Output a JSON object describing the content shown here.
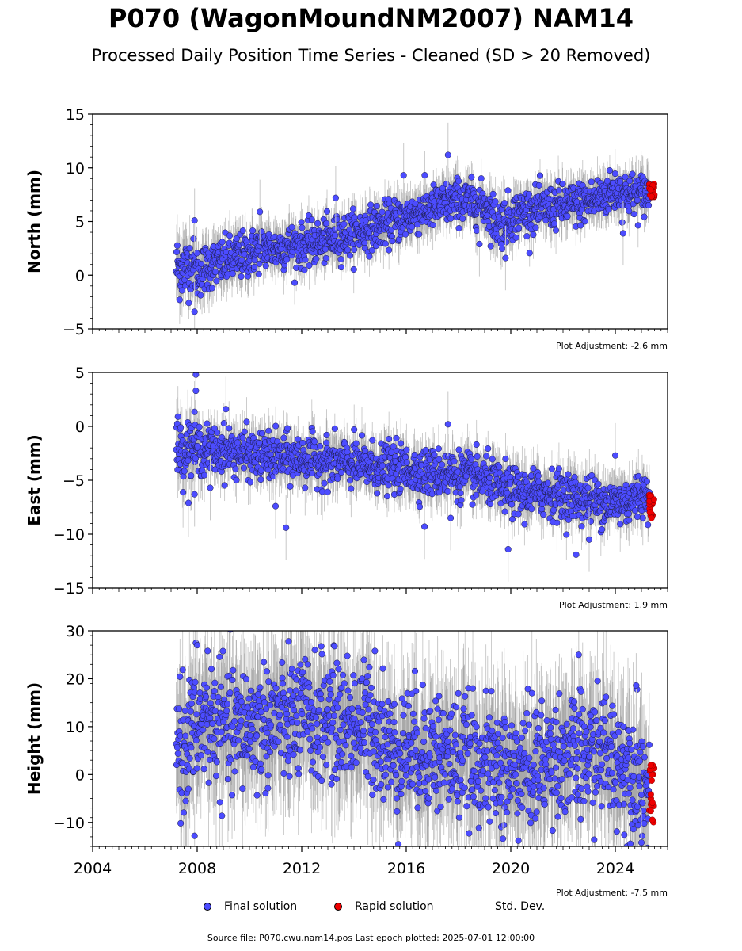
{
  "title": "P070 (WagonMoundNM2007) NAM14",
  "subtitle": "Processed Daily Position Time Series - Cleaned (SD > 20 Removed)",
  "legend": {
    "final": "Final solution",
    "rapid": "Rapid solution",
    "std": "Std. Dev."
  },
  "source_text": "Source file: P070.cwu.nam14.pos  Last epoch plotted: 2025-07-01 12:00:00",
  "colors": {
    "final": "#4c4cff",
    "rapid": "#ee0000",
    "std": "#cccccc"
  },
  "chart_data": [
    {
      "type": "scatter",
      "ylabel": "North (mm)",
      "xlim": [
        2004,
        2026
      ],
      "ylim": [
        -5,
        15
      ],
      "yticks": [
        -5,
        0,
        5,
        10,
        15
      ],
      "xticks": [
        2004,
        2008,
        2012,
        2016,
        2020,
        2024
      ],
      "adjustment": "Plot Adjustment: -2.6 mm",
      "final_series": {
        "x": [
          2007.2,
          2007.5,
          2007.8,
          2008.0,
          2008.5,
          2009.0,
          2009.5,
          2010.0,
          2010.5,
          2011.0,
          2011.5,
          2012.0,
          2012.5,
          2013.0,
          2013.5,
          2014.0,
          2014.5,
          2015.0,
          2015.5,
          2016.0,
          2016.5,
          2017.0,
          2017.5,
          2018.0,
          2018.5,
          2019.0,
          2019.5,
          2020.0,
          2020.5,
          2021.0,
          2021.5,
          2022.0,
          2022.5,
          2023.0,
          2023.5,
          2024.0,
          2024.5,
          2025.0,
          2025.3
        ],
        "y": [
          0.8,
          0.5,
          1.2,
          0.2,
          1.0,
          1.2,
          1.6,
          2.0,
          2.6,
          2.4,
          2.8,
          2.7,
          3.0,
          3.2,
          3.6,
          3.9,
          4.3,
          4.6,
          5.0,
          5.4,
          5.9,
          6.3,
          6.6,
          7.0,
          6.7,
          6.6,
          4.8,
          5.4,
          6.0,
          6.1,
          6.3,
          6.5,
          6.6,
          6.9,
          7.3,
          7.9,
          7.6,
          7.5,
          7.7
        ],
        "spread": [
          1.6,
          1.6,
          1.4,
          1.3,
          1.2,
          1.2,
          1.2,
          1.2,
          1.1,
          1.1,
          1.1,
          1.1,
          1.1,
          1.1,
          1.1,
          1.1,
          1.1,
          1.1,
          1.1,
          1.1,
          1.1,
          1.1,
          1.1,
          1.1,
          1.1,
          1.1,
          1.3,
          1.2,
          1.1,
          1.1,
          1.1,
          1.1,
          1.1,
          1.1,
          1.1,
          1.1,
          1.1,
          1.1,
          1.1
        ]
      },
      "outliers": [
        {
          "x": 2007.9,
          "y": -3.4
        },
        {
          "x": 2007.9,
          "y": 5.1
        },
        {
          "x": 2010.4,
          "y": 5.9
        },
        {
          "x": 2013.3,
          "y": 7.2
        },
        {
          "x": 2015.9,
          "y": 9.3
        },
        {
          "x": 2017.6,
          "y": 11.2
        },
        {
          "x": 2018.8,
          "y": 2.9
        },
        {
          "x": 2019.8,
          "y": 1.6
        },
        {
          "x": 2024.3,
          "y": 3.9
        }
      ],
      "rapid": {
        "x_start": 2025.3,
        "x_end": 2025.5,
        "y_min": 7.2,
        "y_max": 9.0
      }
    },
    {
      "type": "scatter",
      "ylabel": "East (mm)",
      "xlim": [
        2004,
        2026
      ],
      "ylim": [
        -15,
        5
      ],
      "yticks": [
        -15,
        -10,
        -5,
        0,
        5
      ],
      "xticks": [
        2004,
        2008,
        2012,
        2016,
        2020,
        2024
      ],
      "adjustment": "Plot Adjustment: 1.9 mm",
      "final_series": {
        "x": [
          2007.2,
          2007.5,
          2007.8,
          2008.0,
          2008.5,
          2009.0,
          2009.5,
          2010.0,
          2010.5,
          2011.0,
          2011.5,
          2012.0,
          2012.5,
          2013.0,
          2013.5,
          2014.0,
          2014.5,
          2015.0,
          2015.5,
          2016.0,
          2016.5,
          2017.0,
          2017.5,
          2018.0,
          2018.5,
          2019.0,
          2019.5,
          2020.0,
          2020.5,
          2021.0,
          2021.5,
          2022.0,
          2022.5,
          2023.0,
          2023.5,
          2024.0,
          2024.5,
          2025.0,
          2025.3
        ],
        "y": [
          -2.0,
          -2.3,
          -1.8,
          -2.1,
          -2.2,
          -2.3,
          -2.4,
          -2.6,
          -2.8,
          -2.9,
          -3.0,
          -3.0,
          -3.1,
          -3.3,
          -3.4,
          -3.5,
          -3.7,
          -3.8,
          -3.9,
          -4.0,
          -4.2,
          -4.3,
          -4.4,
          -4.5,
          -4.7,
          -4.9,
          -5.6,
          -6.0,
          -6.3,
          -6.1,
          -6.2,
          -6.4,
          -6.6,
          -6.8,
          -7.0,
          -7.1,
          -6.9,
          -6.3,
          -6.4
        ],
        "spread": [
          1.6,
          1.5,
          1.5,
          1.3,
          1.2,
          1.2,
          1.2,
          1.2,
          1.2,
          1.2,
          1.2,
          1.2,
          1.2,
          1.2,
          1.2,
          1.2,
          1.2,
          1.2,
          1.2,
          1.2,
          1.2,
          1.2,
          1.2,
          1.2,
          1.2,
          1.2,
          1.2,
          1.2,
          1.2,
          1.2,
          1.2,
          1.2,
          1.2,
          1.2,
          1.2,
          1.2,
          1.2,
          1.2,
          1.2
        ]
      },
      "outliers": [
        {
          "x": 2007.95,
          "y": 4.8
        },
        {
          "x": 2007.95,
          "y": 3.3
        },
        {
          "x": 2007.9,
          "y": -6.3
        },
        {
          "x": 2008.5,
          "y": -5.7
        },
        {
          "x": 2009.1,
          "y": 1.6
        },
        {
          "x": 2011.4,
          "y": -9.4
        },
        {
          "x": 2011.0,
          "y": -7.4
        },
        {
          "x": 2016.7,
          "y": -9.3
        },
        {
          "x": 2017.6,
          "y": 0.2
        },
        {
          "x": 2017.7,
          "y": -8.5
        },
        {
          "x": 2019.9,
          "y": -11.4
        },
        {
          "x": 2022.5,
          "y": -11.9
        },
        {
          "x": 2023.0,
          "y": -10.5
        },
        {
          "x": 2024.0,
          "y": -2.7
        }
      ],
      "rapid": {
        "x_start": 2025.3,
        "x_end": 2025.5,
        "y_min": -8.6,
        "y_max": -6.3
      }
    },
    {
      "type": "scatter",
      "ylabel": "Height (mm)",
      "xlim": [
        2004,
        2026
      ],
      "ylim": [
        -15,
        30
      ],
      "yticks": [
        -10,
        0,
        10,
        20,
        30
      ],
      "xticks": [
        2004,
        2008,
        2012,
        2016,
        2020,
        2024
      ],
      "adjustment": "Plot Adjustment: -7.5 mm",
      "final_series": {
        "x": [
          2007.2,
          2007.5,
          2007.8,
          2008.0,
          2008.5,
          2009.0,
          2009.5,
          2010.0,
          2010.5,
          2011.0,
          2011.5,
          2012.0,
          2012.5,
          2013.0,
          2013.5,
          2014.0,
          2014.5,
          2015.0,
          2015.5,
          2016.0,
          2016.5,
          2017.0,
          2017.5,
          2018.0,
          2018.5,
          2019.0,
          2019.5,
          2020.0,
          2020.5,
          2021.0,
          2021.5,
          2022.0,
          2022.5,
          2023.0,
          2023.5,
          2024.0,
          2024.5,
          2025.0,
          2025.3
        ],
        "y": [
          8.0,
          6.0,
          9.0,
          10.0,
          11.0,
          10.0,
          9.0,
          10.5,
          10.0,
          11.5,
          11.0,
          12.0,
          11.0,
          12.5,
          11.0,
          11.0,
          10.0,
          9.0,
          4.0,
          6.0,
          5.0,
          5.5,
          4.0,
          3.5,
          2.5,
          2.0,
          1.5,
          1.0,
          1.5,
          2.0,
          3.0,
          4.0,
          3.0,
          4.0,
          5.0,
          3.0,
          2.0,
          0.0,
          -5.0
        ],
        "spread": [
          7.5,
          7.5,
          7.0,
          7.0,
          7.0,
          7.0,
          7.0,
          7.0,
          7.0,
          7.0,
          7.0,
          7.0,
          7.0,
          7.0,
          7.0,
          7.0,
          7.0,
          7.0,
          7.0,
          7.0,
          7.0,
          7.0,
          7.0,
          7.0,
          7.0,
          7.0,
          7.0,
          7.0,
          7.0,
          7.0,
          7.0,
          7.0,
          7.0,
          7.0,
          7.0,
          7.0,
          7.0,
          7.0,
          6.0
        ]
      },
      "outliers": [
        {
          "x": 2008.0,
          "y": 27.0
        },
        {
          "x": 2008.4,
          "y": 25.8
        },
        {
          "x": 2011.5,
          "y": 27.8
        },
        {
          "x": 2014.8,
          "y": 25.8
        },
        {
          "x": 2022.6,
          "y": 25.0
        },
        {
          "x": 2007.9,
          "y": -12.8
        },
        {
          "x": 2019.7,
          "y": -13.4
        },
        {
          "x": 2025.0,
          "y": -14.2
        },
        {
          "x": 2024.8,
          "y": 18.6
        }
      ],
      "rapid": {
        "x_start": 2025.3,
        "x_end": 2025.5,
        "y_min": -10.5,
        "y_max": 3.8
      }
    }
  ]
}
